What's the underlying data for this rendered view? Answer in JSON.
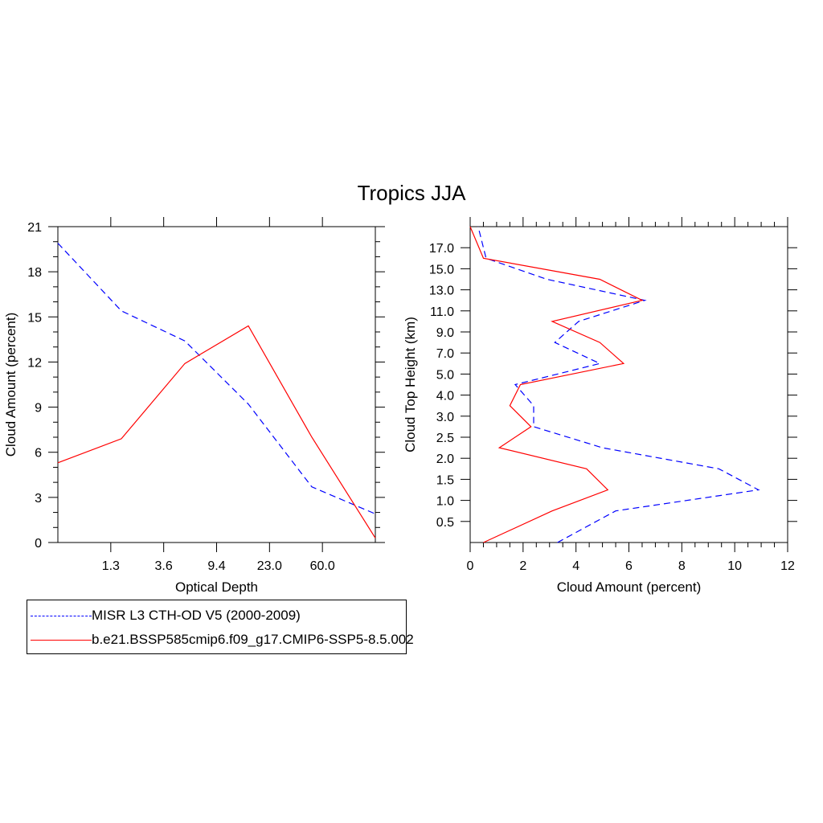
{
  "title": "Tropics JJA",
  "legend": [
    {
      "label": "MISR L3 CTH-OD V5 (2000-2009)",
      "color": "#0000ff",
      "dash": "dashed"
    },
    {
      "label": "b.e21.BSSP585cmip6.f09_g17.CMIP6-SSP5-8.5.002",
      "color": "#ff0000",
      "dash": "solid"
    }
  ],
  "chart_data": [
    {
      "type": "line",
      "xlabel": "Optical Depth",
      "ylabel": "Cloud Amount (percent)",
      "x_ticklabels": [
        "1.3",
        "3.6",
        "9.4",
        "23.0",
        "60.0"
      ],
      "x_bins": [
        "0.3",
        "1.3",
        "3.6",
        "9.4",
        "23.0",
        "60.0",
        "379"
      ],
      "ylim": [
        0,
        21
      ],
      "y_ticks": [
        0,
        3,
        6,
        9,
        12,
        15,
        18,
        21
      ],
      "series": [
        {
          "name": "MISR L3 CTH-OD V5 (2000-2009)",
          "color": "#0000ff",
          "dash": "dashed",
          "points": [
            [
              0,
              19.9
            ],
            [
              1,
              15.4
            ],
            [
              2,
              13.4
            ],
            [
              3,
              9.2
            ],
            [
              4,
              3.7
            ],
            [
              5,
              1.9
            ]
          ]
        },
        {
          "name": "b.e21.BSSP585cmip6.f09_g17.CMIP6-SSP5-8.5.002",
          "color": "#ff0000",
          "dash": "solid",
          "points": [
            [
              0,
              5.3
            ],
            [
              1,
              6.9
            ],
            [
              2,
              11.9
            ],
            [
              3,
              14.4
            ],
            [
              4,
              7.0
            ],
            [
              5,
              0.3
            ]
          ]
        }
      ]
    },
    {
      "type": "line",
      "xlabel": "Cloud Amount (percent)",
      "ylabel": "Cloud Top Height (km)",
      "xlim": [
        0,
        12
      ],
      "x_ticks": [
        0,
        2,
        4,
        6,
        8,
        10,
        12
      ],
      "y_ticklabels": [
        "0.5",
        "1.0",
        "1.5",
        "2.0",
        "2.5",
        "3.0",
        "4.0",
        "5.0",
        "7.0",
        "9.0",
        "11.0",
        "13.0",
        "15.0",
        "17.0"
      ],
      "series": [
        {
          "name": "MISR L3 CTH-OD V5 (2000-2009)",
          "color": "#0000ff",
          "dash": "dashed",
          "height_km": [
            "0.25",
            "0.75",
            "1.25",
            "1.75",
            "2.25",
            "2.75",
            "3.5",
            "4.5",
            "6.0",
            "8.0",
            "10.0",
            "12.0",
            "14.0",
            "16.0",
            "18.0"
          ],
          "amount": [
            3.3,
            5.5,
            10.9,
            9.4,
            5.0,
            2.4,
            2.4,
            1.7,
            4.9,
            3.2,
            4.1,
            6.6,
            2.9,
            0.6,
            0.3
          ]
        },
        {
          "name": "b.e21.BSSP585cmip6.f09_g17.CMIP6-SSP5-8.5.002",
          "color": "#ff0000",
          "dash": "solid",
          "height_km": [
            "0.25",
            "0.75",
            "1.25",
            "1.75",
            "2.25",
            "2.75",
            "3.5",
            "4.5",
            "6.0",
            "8.0",
            "10.0",
            "12.0",
            "14.0",
            "16.0",
            "18.0"
          ],
          "amount": [
            0.5,
            3.1,
            5.2,
            4.4,
            1.1,
            2.3,
            1.5,
            1.9,
            5.8,
            4.9,
            3.1,
            6.5,
            4.9,
            0.5,
            0.0
          ]
        }
      ]
    }
  ]
}
